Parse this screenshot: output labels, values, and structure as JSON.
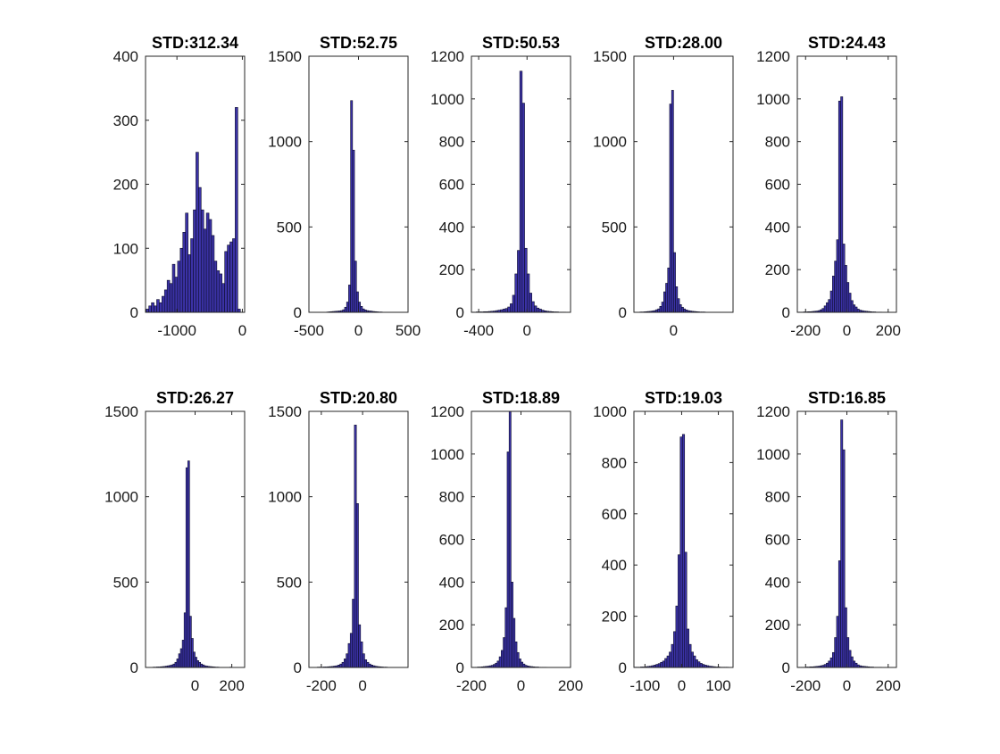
{
  "figure": {
    "background": "#ffffff",
    "bar_color": "#3b32a6",
    "bar_edge_color": "#0d0d2a"
  },
  "chart_data": [
    {
      "type": "bar",
      "title": "STD:312.34",
      "xlabel": "",
      "ylabel": "",
      "xlim": [
        -1480,
        35
      ],
      "ylim": [
        0,
        400
      ],
      "xticks": [
        -1000,
        0
      ],
      "xtick_labels": [
        "-1000",
        "0"
      ],
      "yticks": [
        0,
        100,
        200,
        300,
        400
      ],
      "ytick_labels": [
        "0",
        "100",
        "200",
        "300",
        "400"
      ],
      "bin_start": -1470,
      "bin_width": 40,
      "counts": [
        5,
        10,
        15,
        10,
        20,
        15,
        25,
        35,
        50,
        45,
        75,
        55,
        80,
        100,
        125,
        155,
        90,
        115,
        160,
        250,
        195,
        160,
        130,
        155,
        145,
        120,
        80,
        65,
        60,
        45,
        95,
        105,
        110,
        115,
        320,
        5
      ]
    },
    {
      "type": "bar",
      "title": "STD:52.75",
      "xlabel": "",
      "ylabel": "",
      "xlim": [
        -500,
        500
      ],
      "ylim": [
        0,
        1500
      ],
      "xticks": [
        -500,
        0,
        500
      ],
      "xtick_labels": [
        "-500",
        "0",
        "500"
      ],
      "yticks": [
        0,
        500,
        1000,
        1500
      ],
      "ytick_labels": [
        "0",
        "500",
        "1000",
        "1500"
      ],
      "bin_start": -500,
      "bin_width": 20,
      "counts": [
        0,
        0,
        0,
        0,
        0,
        0,
        0,
        1,
        1,
        2,
        3,
        4,
        5,
        6,
        7,
        8,
        10,
        15,
        30,
        60,
        160,
        1240,
        950,
        300,
        120,
        60,
        35,
        20,
        14,
        10,
        8,
        7,
        5,
        4,
        3,
        2,
        2,
        1,
        1,
        1,
        1,
        0,
        0,
        0,
        0,
        0,
        0,
        0,
        0,
        0
      ]
    },
    {
      "type": "bar",
      "title": "STD:50.53",
      "xlabel": "",
      "ylabel": "",
      "xlim": [
        -460,
        360
      ],
      "ylim": [
        0,
        1200
      ],
      "xticks": [
        -400,
        0
      ],
      "xtick_labels": [
        "-400",
        "0"
      ],
      "yticks": [
        0,
        200,
        400,
        600,
        800,
        1000,
        1200
      ],
      "ytick_labels": [
        "0",
        "200",
        "400",
        "600",
        "800",
        "1000",
        "1200"
      ],
      "bin_start": -460,
      "bin_width": 20,
      "counts": [
        1,
        1,
        2,
        2,
        2,
        3,
        3,
        4,
        5,
        6,
        8,
        10,
        12,
        15,
        18,
        25,
        40,
        80,
        180,
        290,
        1130,
        980,
        300,
        180,
        90,
        50,
        30,
        20,
        15,
        10,
        7,
        5,
        4,
        3,
        2,
        2,
        1,
        1,
        1,
        0,
        0
      ]
    },
    {
      "type": "bar",
      "title": "STD:28.00",
      "xlabel": "",
      "ylabel": "",
      "xlim": [
        -200,
        300
      ],
      "ylim": [
        0,
        1500
      ],
      "xticks": [
        0
      ],
      "xtick_labels": [
        "0"
      ],
      "yticks": [
        0,
        500,
        1000,
        1500
      ],
      "ytick_labels": [
        "0",
        "500",
        "1000",
        "1500"
      ],
      "bin_start": -200,
      "bin_width": 10,
      "counts": [
        1,
        1,
        1,
        2,
        2,
        3,
        4,
        5,
        6,
        8,
        10,
        15,
        20,
        35,
        60,
        120,
        170,
        260,
        1220,
        1300,
        350,
        150,
        80,
        45,
        30,
        20,
        14,
        10,
        8,
        6,
        5,
        4,
        3,
        2,
        2,
        2,
        1,
        1,
        1,
        1,
        0,
        0,
        0,
        0,
        0,
        0,
        0,
        0,
        0,
        0
      ]
    },
    {
      "type": "bar",
      "title": "STD:24.43",
      "xlabel": "",
      "ylabel": "",
      "xlim": [
        -240,
        240
      ],
      "ylim": [
        0,
        1200
      ],
      "xticks": [
        -200,
        0,
        200
      ],
      "xtick_labels": [
        "-200",
        "0",
        "200"
      ],
      "yticks": [
        0,
        200,
        400,
        600,
        800,
        1000,
        1200
      ],
      "ytick_labels": [
        "0",
        "200",
        "400",
        "600",
        "800",
        "1000",
        "1200"
      ],
      "bin_start": -240,
      "bin_width": 10,
      "counts": [
        1,
        1,
        1,
        2,
        2,
        3,
        3,
        4,
        5,
        6,
        8,
        12,
        18,
        30,
        45,
        60,
        100,
        170,
        240,
        340,
        990,
        1010,
        320,
        220,
        140,
        90,
        55,
        35,
        25,
        15,
        10,
        8,
        6,
        5,
        4,
        3,
        2,
        2,
        1,
        1,
        1,
        0,
        0,
        0,
        0,
        0,
        0,
        0
      ]
    },
    {
      "type": "bar",
      "title": "STD:26.27",
      "xlabel": "",
      "ylabel": "",
      "xlim": [
        -270,
        270
      ],
      "ylim": [
        0,
        1500
      ],
      "xticks": [
        0,
        200
      ],
      "xtick_labels": [
        "0",
        "200"
      ],
      "yticks": [
        0,
        500,
        1000,
        1500
      ],
      "ytick_labels": [
        "0",
        "500",
        "1000",
        "1500"
      ],
      "bin_start": -270,
      "bin_width": 10,
      "counts": [
        1,
        1,
        1,
        1,
        2,
        2,
        3,
        3,
        4,
        5,
        6,
        8,
        10,
        12,
        15,
        20,
        30,
        50,
        80,
        110,
        160,
        320,
        1170,
        1210,
        300,
        170,
        90,
        60,
        40,
        30,
        20,
        15,
        10,
        8,
        6,
        5,
        4,
        3,
        2,
        2,
        1,
        1,
        1,
        1,
        1,
        1,
        2,
        1,
        1,
        0,
        0,
        0,
        0,
        0
      ]
    },
    {
      "type": "bar",
      "title": "STD:20.80",
      "xlabel": "",
      "ylabel": "",
      "xlim": [
        -260,
        220
      ],
      "ylim": [
        0,
        1500
      ],
      "xticks": [
        -200,
        0
      ],
      "xtick_labels": [
        "-200",
        "0"
      ],
      "yticks": [
        0,
        500,
        1000,
        1500
      ],
      "ytick_labels": [
        "0",
        "500",
        "1000",
        "1500"
      ],
      "bin_start": -260,
      "bin_width": 10,
      "counts": [
        1,
        1,
        1,
        1,
        2,
        2,
        2,
        3,
        3,
        4,
        5,
        6,
        8,
        10,
        14,
        20,
        30,
        50,
        80,
        140,
        200,
        400,
        1420,
        960,
        250,
        150,
        80,
        45,
        30,
        20,
        14,
        10,
        7,
        5,
        4,
        3,
        2,
        2,
        1,
        1,
        1,
        1,
        1,
        0,
        0,
        0,
        0,
        0
      ]
    },
    {
      "type": "bar",
      "title": "STD:18.89",
      "xlabel": "",
      "ylabel": "",
      "xlim": [
        -200,
        200
      ],
      "ylim": [
        0,
        1200
      ],
      "xticks": [
        -200,
        0,
        200
      ],
      "xtick_labels": [
        "-200",
        "0",
        "200"
      ],
      "yticks": [
        0,
        200,
        400,
        600,
        800,
        1000,
        1200
      ],
      "ytick_labels": [
        "0",
        "200",
        "400",
        "600",
        "800",
        "1000",
        "1200"
      ],
      "bin_start": -200,
      "bin_width": 8,
      "counts": [
        1,
        1,
        1,
        2,
        2,
        3,
        4,
        5,
        6,
        8,
        10,
        14,
        20,
        30,
        50,
        80,
        140,
        280,
        1010,
        1200,
        400,
        230,
        120,
        70,
        40,
        25,
        16,
        10,
        7,
        5,
        4,
        3,
        2,
        2,
        1,
        1,
        1,
        1,
        0,
        0,
        0,
        0,
        0,
        0,
        0,
        0,
        0,
        0,
        0,
        0
      ]
    },
    {
      "type": "bar",
      "title": "STD:19.03",
      "xlabel": "",
      "ylabel": "",
      "xlim": [
        -130,
        140
      ],
      "ylim": [
        0,
        1000
      ],
      "xticks": [
        -100,
        0,
        100
      ],
      "xtick_labels": [
        "-100",
        "0",
        "100"
      ],
      "yticks": [
        0,
        200,
        400,
        600,
        800,
        1000
      ],
      "ytick_labels": [
        "0",
        "200",
        "400",
        "600",
        "800",
        "1000"
      ],
      "bin_start": -130,
      "bin_width": 6,
      "counts": [
        1,
        1,
        1,
        2,
        2,
        3,
        4,
        5,
        7,
        9,
        12,
        15,
        20,
        25,
        35,
        45,
        60,
        90,
        140,
        240,
        440,
        900,
        910,
        450,
        150,
        90,
        60,
        45,
        30,
        22,
        16,
        12,
        9,
        7,
        5,
        4,
        3,
        2,
        2,
        1,
        1,
        1,
        1,
        0,
        0
      ]
    },
    {
      "type": "bar",
      "title": "STD:16.85",
      "xlabel": "",
      "ylabel": "",
      "xlim": [
        -240,
        240
      ],
      "ylim": [
        0,
        1200
      ],
      "xticks": [
        -200,
        0,
        200
      ],
      "xtick_labels": [
        "-200",
        "0",
        "200"
      ],
      "yticks": [
        0,
        200,
        400,
        600,
        800,
        1000,
        1200
      ],
      "ytick_labels": [
        "0",
        "200",
        "400",
        "600",
        "800",
        "1000",
        "1200"
      ],
      "bin_start": -240,
      "bin_width": 10,
      "counts": [
        1,
        1,
        1,
        1,
        2,
        2,
        3,
        3,
        4,
        5,
        6,
        8,
        10,
        14,
        20,
        30,
        45,
        70,
        140,
        240,
        500,
        1160,
        1020,
        280,
        140,
        80,
        50,
        30,
        20,
        12,
        8,
        6,
        5,
        4,
        3,
        2,
        2,
        1,
        1,
        1,
        1,
        0,
        0,
        0,
        0,
        0,
        0,
        0
      ]
    }
  ]
}
